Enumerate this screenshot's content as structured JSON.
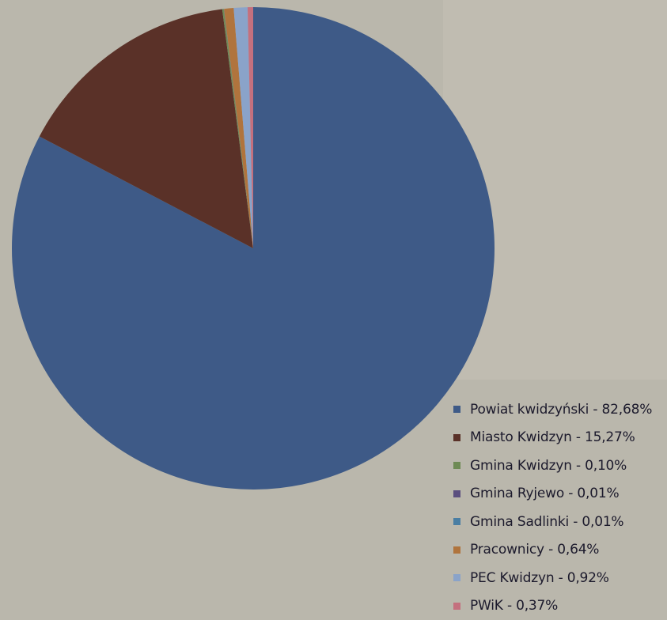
{
  "chart_data": {
    "type": "pie",
    "title": "",
    "slices": [
      {
        "label": "Powiat kwidzyński - 82,68%",
        "value": 82.68,
        "color": "#3e5a87"
      },
      {
        "label": "Miasto Kwidzyn - 15,27%",
        "value": 15.27,
        "color": "#5a3128"
      },
      {
        "label": "Gmina Kwidzyn - 0,10%",
        "value": 0.1,
        "color": "#6e8a55"
      },
      {
        "label": "Gmina Ryjewo - 0,01%",
        "value": 0.01,
        "color": "#5b4f7f"
      },
      {
        "label": "Gmina Sadlinki - 0,01%",
        "value": 0.01,
        "color": "#4a7ea3"
      },
      {
        "label": "Pracownicy - 0,64%",
        "value": 0.64,
        "color": "#b0743d"
      },
      {
        "label": "PEC Kwidzyn - 0,92%",
        "value": 0.92,
        "color": "#8aa3c9"
      },
      {
        "label": "PWiK - 0,37%",
        "value": 0.37,
        "color": "#c4707e"
      }
    ],
    "legend_position": "bottom-right"
  }
}
